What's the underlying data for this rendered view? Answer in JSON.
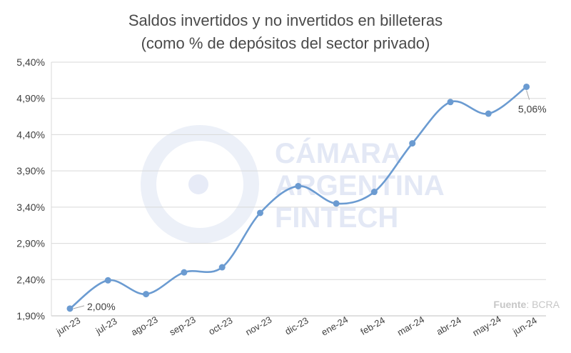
{
  "title_line1": "Saldos invertidos y no invertidos en billeteras",
  "title_line2": "(como % de depósitos del sector privado)",
  "watermark": {
    "lines": [
      "CÁMARA",
      "ARGENTINA",
      "FINTECH"
    ],
    "color": "#dde3f3"
  },
  "source": {
    "label": "Fuente",
    "value": ": BCRA"
  },
  "chart_data": {
    "type": "line",
    "title": "Saldos invertidos y no invertidos en billeteras (como % de depósitos del sector privado)",
    "categories": [
      "jun-23",
      "jul-23",
      "ago-23",
      "sep-23",
      "oct-23",
      "nov-23",
      "dic-23",
      "ene-24",
      "feb-24",
      "mar-24",
      "abr-24",
      "may-24",
      "jun-24"
    ],
    "series": [
      {
        "values": [
          2.0,
          2.39,
          2.2,
          2.5,
          2.57,
          3.32,
          3.69,
          3.45,
          3.61,
          4.28,
          4.85,
          4.69,
          5.06
        ],
        "color": "#6b9bd1"
      }
    ],
    "y_ticks": [
      "1,90%",
      "2,40%",
      "2,90%",
      "3,40%",
      "3,90%",
      "4,40%",
      "4,90%",
      "5,40%"
    ],
    "ylim": [
      1.9,
      5.4
    ],
    "grid": true,
    "data_labels": [
      {
        "index": 0,
        "text": "2,00%"
      },
      {
        "index": 12,
        "text": "5,06%"
      }
    ]
  }
}
